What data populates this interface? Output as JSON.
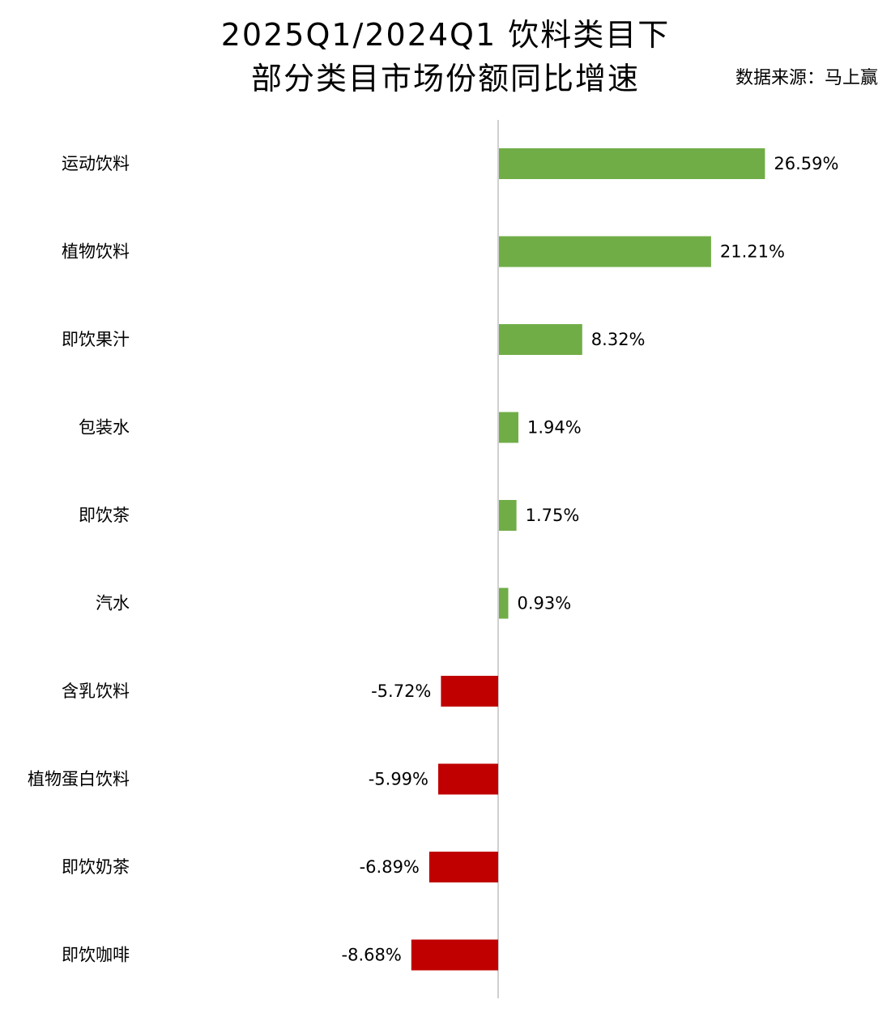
{
  "chart_data": {
    "type": "bar",
    "orientation": "horizontal",
    "title_lines": [
      "2025Q1/2024Q1 饮料类目下",
      "部分类目市场份额同比增速"
    ],
    "source": "数据来源：马上赢",
    "categories": [
      "运动饮料",
      "植物饮料",
      "即饮果汁",
      "包装水",
      "即饮茶",
      "汽水",
      "含乳饮料",
      "植物蛋白饮料",
      "即饮奶茶",
      "即饮咖啡"
    ],
    "values": [
      26.59,
      21.21,
      8.32,
      1.94,
      1.75,
      0.93,
      -5.72,
      -5.99,
      -6.89,
      -8.68
    ],
    "data_labels": [
      "26.59%",
      "21.21%",
      "8.32%",
      "1.94%",
      "1.75%",
      "0.93%",
      "-5.72%",
      "-5.99%",
      "-6.89%",
      "-8.68%"
    ],
    "unit": "%",
    "xlim": [
      -50,
      40
    ],
    "colors": {
      "positive": "#70ad47",
      "negative": "#c00000",
      "axis": "#d0d0d0"
    },
    "legend": "none",
    "grid": false
  }
}
